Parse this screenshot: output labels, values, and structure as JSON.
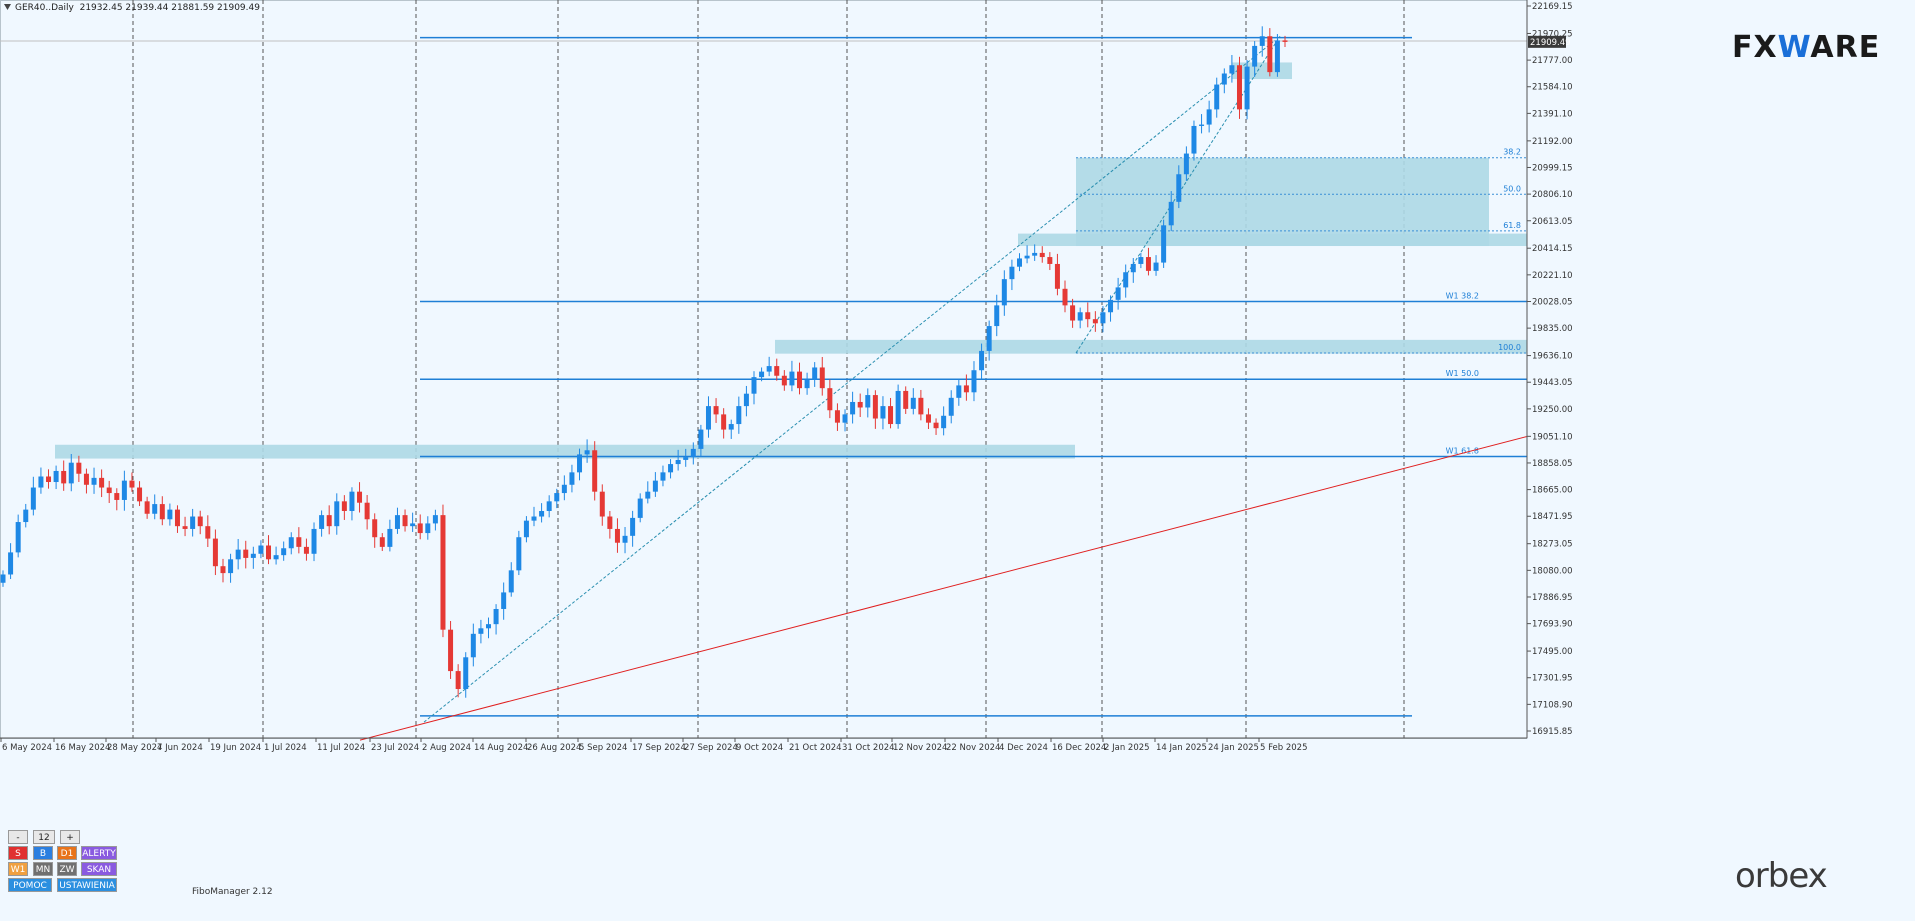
{
  "header": {
    "symbol": "GER40..Daily",
    "ohlc": "21932.45 21939.44 21881.59 21909.49"
  },
  "logos": {
    "fxware_a": "FX",
    "fxware_b": "W",
    "fxware_c": "ARE",
    "orbex": "orbex"
  },
  "fibo_manager": "FiboManager 2.12",
  "controls": {
    "minus": "-",
    "count": "12",
    "plus": "+",
    "row1": [
      {
        "label": "S",
        "color": "#e03030"
      },
      {
        "label": "B",
        "color": "#2b7fe0"
      },
      {
        "label": "D1",
        "color": "#e8731a"
      },
      {
        "label": "ALERTY",
        "color": "#8a5be0"
      }
    ],
    "row2": [
      {
        "label": "W1",
        "color": "#f0a040"
      },
      {
        "label": "MN",
        "color": "#707070"
      },
      {
        "label": "ZW",
        "color": "#707070"
      },
      {
        "label": "SKAN",
        "color": "#8a5be0"
      }
    ],
    "row3": [
      {
        "label": "POMOC",
        "color": "#2b8fe0"
      },
      {
        "label": "USTAWIENIA",
        "color": "#2b8fe0"
      }
    ]
  },
  "chart_data": {
    "type": "candlestick",
    "symbol": "GER40",
    "timeframe": "Daily",
    "price_labels": [
      "22169.15",
      "21970.25",
      "21777.00",
      "21584.10",
      "21391.10",
      "21192.00",
      "20999.15",
      "20806.10",
      "20613.05",
      "20414.15",
      "20221.10",
      "20028.05",
      "19835.00",
      "19636.10",
      "19443.05",
      "19250.00",
      "19051.10",
      "18858.05",
      "18665.00",
      "18471.95",
      "18273.05",
      "18080.00",
      "17886.95",
      "17693.90",
      "17495.00",
      "17301.95",
      "17108.90",
      "16915.85"
    ],
    "current_price": "21909.49",
    "date_labels": [
      "6 May 2024",
      "16 May 2024",
      "28 May 2024",
      "7 Jun 2024",
      "19 Jun 2024",
      "1 Jul 2024",
      "11 Jul 2024",
      "23 Jul 2024",
      "2 Aug 2024",
      "14 Aug 2024",
      "26 Aug 2024",
      "5 Sep 2024",
      "17 Sep 2024",
      "27 Sep 2024",
      "9 Oct 2024",
      "21 Oct 2024",
      "31 Oct 2024",
      "12 Nov 2024",
      "22 Nov 2024",
      "4 Dec 2024",
      "16 Dec 2024",
      "2 Jan 2025",
      "14 Jan 2025",
      "24 Jan 2025",
      "5 Feb 2025"
    ],
    "levels": [
      {
        "price": 21940,
        "label": ""
      },
      {
        "price": 20028,
        "label": "W1 38.2"
      },
      {
        "price": 19465,
        "label": "W1 50.0"
      },
      {
        "price": 18905,
        "label": "W1 61.8"
      },
      {
        "price": 17025,
        "label": ""
      }
    ],
    "fib_levels": [
      {
        "price": 21070,
        "label": "38.2"
      },
      {
        "price": 20805,
        "label": "50.0"
      },
      {
        "price": 20540,
        "label": "61.8"
      },
      {
        "price": 19655,
        "label": "100.0"
      }
    ],
    "zones": [
      {
        "from": "28 Sep",
        "to": "end",
        "low": 19650,
        "high": 19750
      },
      {
        "from": "16 May",
        "to": "17 Dec",
        "low": 18890,
        "high": 18990
      },
      {
        "from": "17 Dec",
        "to": "end",
        "low": 20430,
        "high": 21070
      },
      {
        "from": "5 Dec",
        "to": "end",
        "low": 20430,
        "high": 20520
      },
      {
        "from": "27 Jan",
        "to": "6 Feb",
        "low": 21640,
        "high": 21760
      }
    ],
    "trendline": {
      "from": {
        "date": "23 Jul 2024",
        "price": 16930
      },
      "to": {
        "date": "end",
        "price": 19050
      }
    },
    "candles": [
      18050,
      18210,
      18430,
      18520,
      18680,
      18760,
      18720,
      18800,
      18710,
      18860,
      18780,
      18700,
      18750,
      18680,
      18640,
      18590,
      18730,
      18680,
      18580,
      18490,
      18560,
      18450,
      18520,
      18400,
      18380,
      18470,
      18400,
      18310,
      18110,
      18060,
      18160,
      18230,
      18170,
      18200,
      18260,
      18160,
      18190,
      18240,
      18320,
      18250,
      18200,
      18380,
      18480,
      18400,
      18580,
      18510,
      18650,
      18570,
      18450,
      18320,
      18250,
      18380,
      18480,
      18400,
      18420,
      18350,
      18420,
      18480,
      17650,
      17350,
      17220,
      17450,
      17620,
      17660,
      17690,
      17800,
      17920,
      18080,
      18320,
      18440,
      18470,
      18510,
      18580,
      18640,
      18700,
      18790,
      18920,
      18950,
      18650,
      18470,
      18380,
      18280,
      18330,
      18460,
      18600,
      18650,
      18730,
      18790,
      18850,
      18880,
      18900,
      18960,
      19100,
      19270,
      19210,
      19100,
      19140,
      19270,
      19360,
      19480,
      19520,
      19560,
      19490,
      19420,
      19520,
      19400,
      19460,
      19550,
      19400,
      19240,
      19150,
      19210,
      19300,
      19260,
      19350,
      19180,
      19270,
      19140,
      19380,
      19250,
      19330,
      19210,
      19150,
      19110,
      19200,
      19330,
      19420,
      19370,
      19530,
      19670,
      19850,
      20000,
      20190,
      20280,
      20340,
      20360,
      20380,
      20350,
      20300,
      20120,
      20000,
      19890,
      19950,
      19900,
      19870,
      19950,
      20040,
      20130,
      20240,
      20300,
      20350,
      20250,
      20310,
      20580,
      20750,
      20950,
      21100,
      21300,
      21310,
      21420,
      21600,
      21680,
      21740,
      21420,
      21730,
      21880,
      21950,
      21690,
      21920,
      21909
    ],
    "price_range": [
      16915.85,
      22169.15
    ]
  }
}
